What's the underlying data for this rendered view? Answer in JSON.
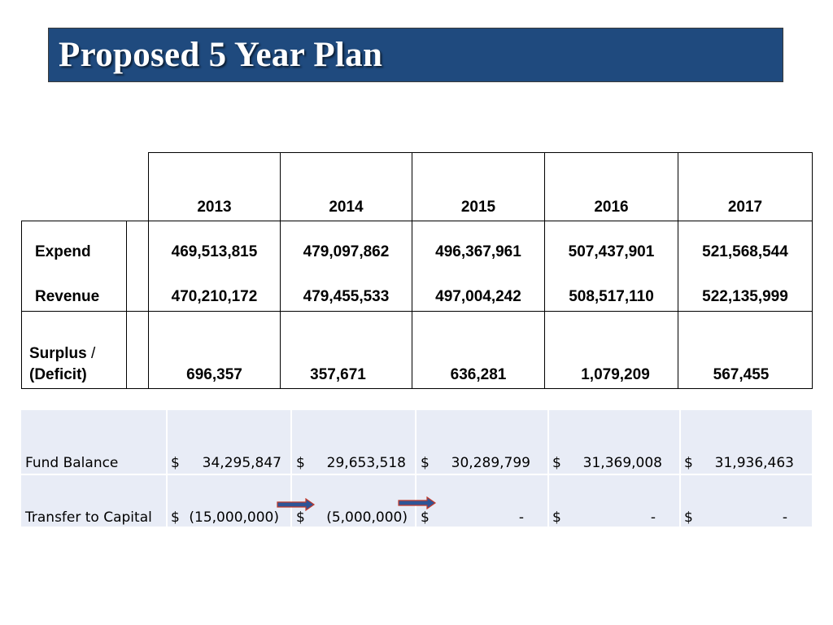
{
  "slide": {
    "title": "Proposed 5 Year Plan"
  },
  "plan_table": {
    "years": [
      "2013",
      "2014",
      "2015",
      "2016",
      "2017"
    ],
    "rows": [
      {
        "label": "Expend",
        "values": [
          "469,513,815",
          "479,097,862",
          "496,367,961",
          "507,437,901",
          "521,568,544"
        ]
      },
      {
        "label": "Revenue",
        "values": [
          "470,210,172",
          "479,455,533",
          "497,004,242",
          "508,517,110",
          "522,135,999"
        ]
      },
      {
        "label_line1": "Surplus",
        "label_slash": "/",
        "label_line2": "(Deficit)",
        "values": [
          "696,357",
          "357,671",
          "636,281",
          "1,079,209",
          "567,455"
        ]
      }
    ]
  },
  "balance_table": {
    "rows": [
      {
        "label": "Fund Balance",
        "cells": [
          {
            "sign": "$",
            "amount": "34,295,847"
          },
          {
            "sign": "$",
            "amount": "29,653,518"
          },
          {
            "sign": "$",
            "amount": "30,289,799"
          },
          {
            "sign": "$",
            "amount": "31,369,008"
          },
          {
            "sign": "$",
            "amount": "31,936,463"
          }
        ]
      },
      {
        "label": "Transfer to Capital",
        "cells": [
          {
            "sign": "$",
            "amount": "(15,000,000)"
          },
          {
            "sign": "$",
            "amount": "(5,000,000)"
          },
          {
            "sign": "$",
            "amount": "-"
          },
          {
            "sign": "$",
            "amount": "-"
          },
          {
            "sign": "$",
            "amount": "-"
          }
        ]
      }
    ]
  },
  "colors": {
    "title_bar": "#1f4a7e",
    "shade": "#e8ecf6",
    "arrow_fill": "#2e5597",
    "arrow_outline": "#c0392b"
  }
}
